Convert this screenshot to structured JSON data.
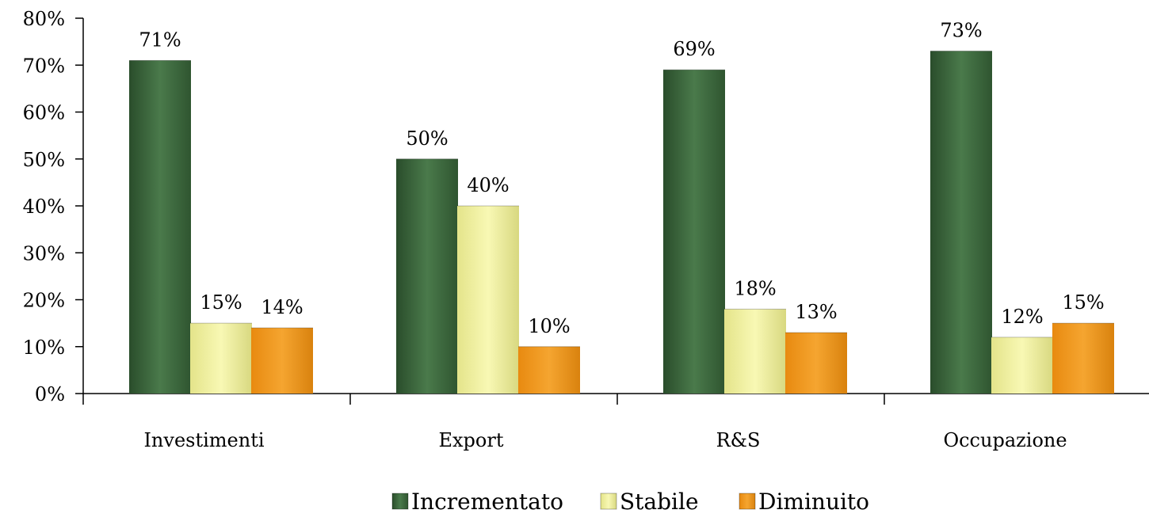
{
  "chart_data": {
    "type": "bar",
    "categories": [
      "Investimenti",
      "Export",
      "R&S",
      "Occupazione"
    ],
    "series": [
      {
        "name": "Incrementato",
        "values": [
          71,
          50,
          69,
          73
        ],
        "labels": [
          "71%",
          "50%",
          "69%",
          "73%"
        ],
        "color": "#3f6b40"
      },
      {
        "name": "Stabile",
        "values": [
          15,
          40,
          18,
          12
        ],
        "labels": [
          "15%",
          "40%",
          "18%",
          "12%"
        ],
        "color": "#eeee9a"
      },
      {
        "name": "Diminuito",
        "values": [
          14,
          10,
          13,
          15
        ],
        "labels": [
          "14%",
          "10%",
          "13%",
          "15%"
        ],
        "color": "#f29b1a"
      }
    ],
    "yticks": [
      "0%",
      "10%",
      "20%",
      "30%",
      "40%",
      "50%",
      "60%",
      "70%",
      "80%"
    ],
    "ylim": [
      0,
      80
    ],
    "grid": false,
    "legend_position": "bottom"
  }
}
